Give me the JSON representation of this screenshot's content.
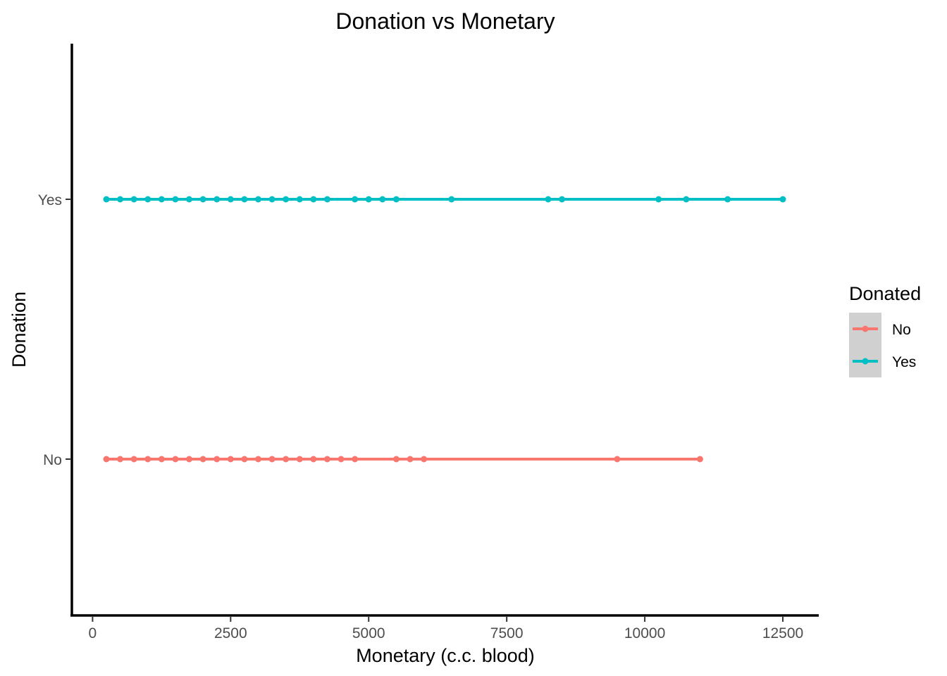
{
  "chart_data": {
    "type": "line",
    "title": "Donation vs Monetary",
    "xlabel": "Monetary (c.c. blood)",
    "ylabel": "Donation",
    "xlim": [
      -375,
      13125
    ],
    "x_ticks": [
      0,
      2500,
      5000,
      7500,
      10000,
      12500
    ],
    "x_tick_labels": [
      "0",
      "2500",
      "5000",
      "7500",
      "10000",
      "12500"
    ],
    "categories": [
      "No",
      "Yes"
    ],
    "grid": false,
    "legend": {
      "title": "Donated",
      "position": "right"
    },
    "series": [
      {
        "name": "No",
        "y": "No",
        "color": "#F8766D",
        "x": [
          250,
          500,
          750,
          1000,
          1250,
          1500,
          1750,
          2000,
          2250,
          2500,
          2750,
          3000,
          3250,
          3500,
          3750,
          4000,
          4250,
          4500,
          4750,
          5500,
          5750,
          6000,
          9500,
          11000
        ]
      },
      {
        "name": "Yes",
        "y": "Yes",
        "color": "#00BFC4",
        "x": [
          250,
          500,
          750,
          1000,
          1250,
          1500,
          1750,
          2000,
          2250,
          2500,
          2750,
          3000,
          3250,
          3500,
          3750,
          4000,
          4250,
          4750,
          5000,
          5250,
          5500,
          6500,
          8250,
          8500,
          10250,
          10750,
          11500,
          12500
        ]
      }
    ]
  }
}
